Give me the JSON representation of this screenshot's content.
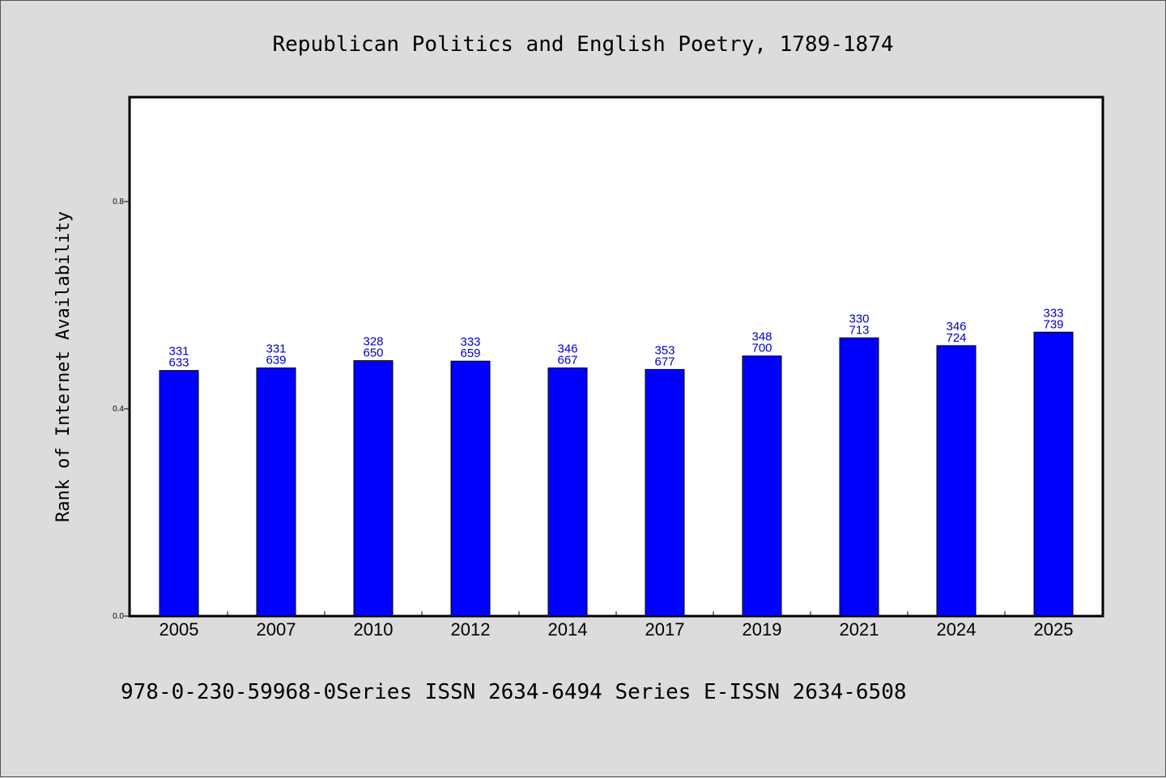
{
  "chart_data": {
    "type": "bar",
    "title": "Republican Politics and English Poetry, 1789-1874",
    "xlabel": "",
    "ylabel": "Rank of Internet Availability",
    "ylim": [
      0,
      1.0
    ],
    "yticks": [
      0.0,
      0.4,
      0.8
    ],
    "ytick_labels": [
      "0.0",
      "0.4",
      "0.8"
    ],
    "categories": [
      "2005",
      "2007",
      "2010",
      "2012",
      "2014",
      "2017",
      "2019",
      "2021",
      "2024",
      "2025"
    ],
    "values": [
      0.474,
      0.479,
      0.493,
      0.492,
      0.479,
      0.476,
      0.502,
      0.537,
      0.522,
      0.548
    ],
    "data_labels": [
      [
        "331",
        "633"
      ],
      [
        "331",
        "639"
      ],
      [
        "328",
        "650"
      ],
      [
        "333",
        "659"
      ],
      [
        "346",
        "667"
      ],
      [
        "353",
        "677"
      ],
      [
        "348",
        "700"
      ],
      [
        "330",
        "713"
      ],
      [
        "346",
        "724"
      ],
      [
        "333",
        "739"
      ]
    ],
    "bar_color": "#0000ff",
    "label_color": "#0000cc",
    "grid": false,
    "legend": "none"
  },
  "footer": "978-0-230-59968-0Series ISSN 2634-6494 Series E-ISSN 2634-6508"
}
